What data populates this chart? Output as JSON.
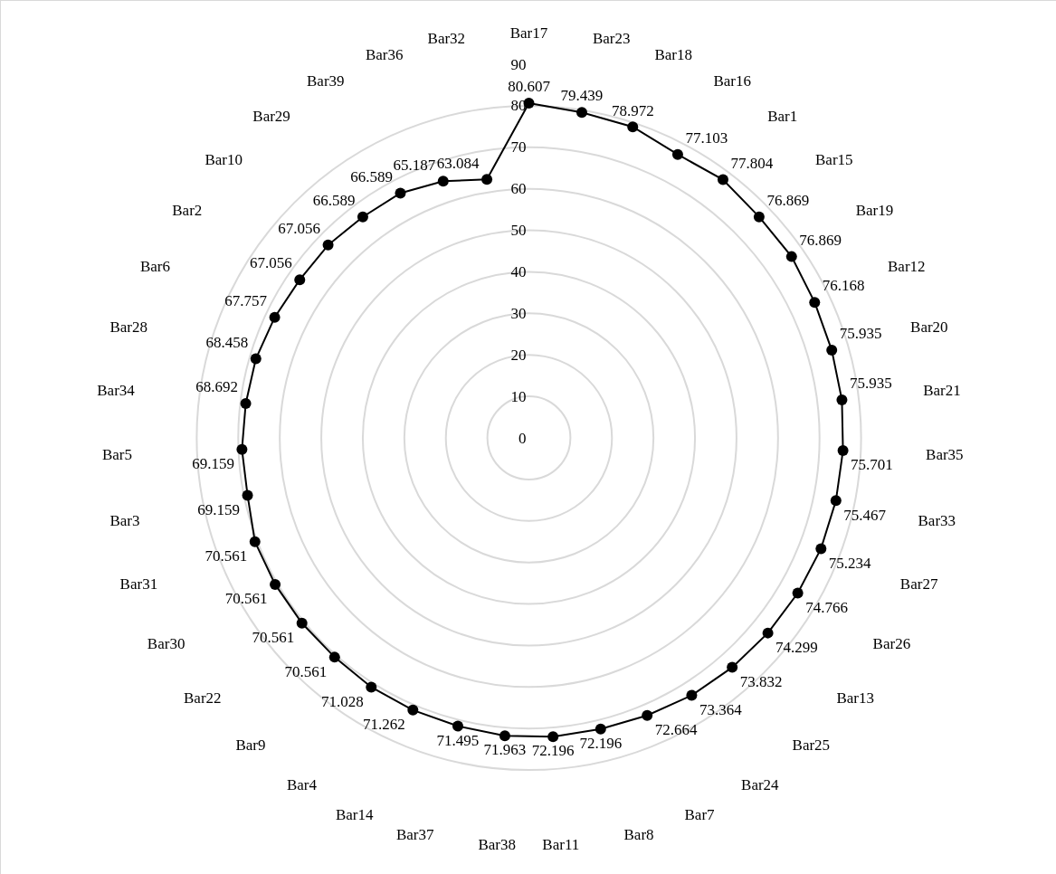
{
  "chart_data": {
    "type": "radar",
    "categories": [
      "Bar17",
      "Bar23",
      "Bar18",
      "Bar16",
      "Bar1",
      "Bar15",
      "Bar19",
      "Bar12",
      "Bar20",
      "Bar21",
      "Bar35",
      "Bar33",
      "Bar27",
      "Bar26",
      "Bar13",
      "Bar25",
      "Bar24",
      "Bar7",
      "Bar8",
      "Bar11",
      "Bar38",
      "Bar37",
      "Bar14",
      "Bar4",
      "Bar9",
      "Bar22",
      "Bar30",
      "Bar31",
      "Bar3",
      "Bar5",
      "Bar34",
      "Bar28",
      "Bar6",
      "Bar2",
      "Bar10",
      "Bar29",
      "Bar39",
      "Bar36",
      "Bar32"
    ],
    "series": [
      {
        "color": "#000000",
        "values": [
          80.607,
          79.439,
          78.972,
          77.103,
          77.804,
          76.869,
          76.869,
          76.168,
          75.935,
          75.935,
          75.701,
          75.467,
          75.234,
          74.766,
          74.299,
          73.832,
          73.364,
          72.664,
          72.196,
          72.196,
          71.963,
          71.495,
          71.262,
          71.028,
          70.561,
          70.561,
          70.561,
          70.561,
          69.159,
          69.159,
          68.692,
          68.458,
          67.757,
          67.056,
          67.056,
          66.589,
          66.589,
          65.187,
          63.084
        ]
      }
    ],
    "ylim": [
      0,
      90
    ],
    "yticks": [
      0,
      10,
      20,
      30,
      40,
      50,
      60,
      70,
      80,
      90
    ],
    "grid": true,
    "marker": "circle",
    "line_style": "solid",
    "data_labels": true
  }
}
